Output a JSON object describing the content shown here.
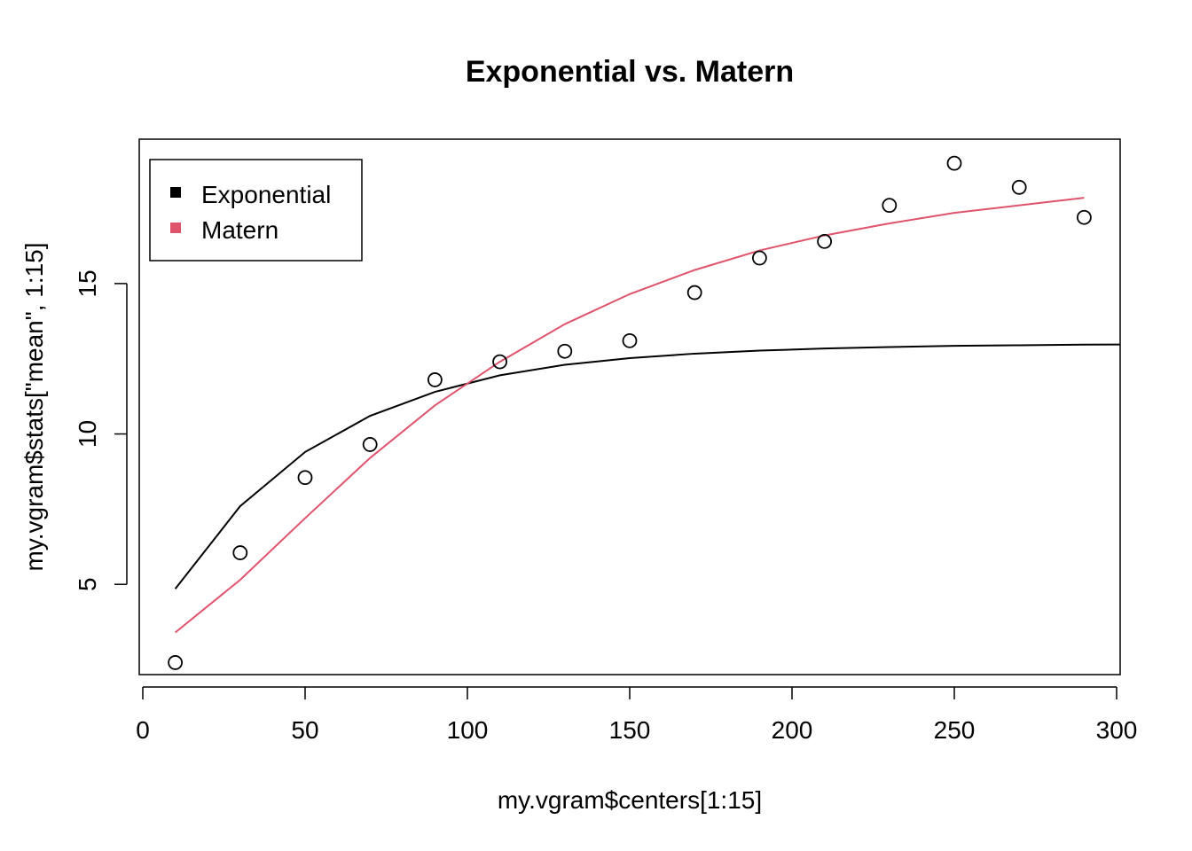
{
  "chart_data": {
    "type": "scatter",
    "title": "Exponential vs. Matern",
    "xlabel": "my.vgram$centers[1:15]",
    "ylabel": "my.vgram$stats[\"mean\", 1:15]",
    "xlim": [
      0,
      300
    ],
    "ylim": [
      2,
      19.8
    ],
    "x_ticks": [
      0,
      50,
      100,
      150,
      200,
      250,
      300
    ],
    "y_ticks": [
      5,
      10,
      15
    ],
    "grid": false,
    "legend_position": "top-left",
    "points": {
      "x": [
        10,
        30,
        50,
        70,
        90,
        110,
        130,
        150,
        170,
        190,
        210,
        230,
        250,
        270,
        290
      ],
      "y": [
        2.4,
        6.05,
        8.55,
        9.65,
        11.8,
        12.4,
        12.75,
        13.1,
        14.7,
        15.85,
        16.4,
        17.6,
        19.0,
        18.2,
        17.2
      ]
    },
    "series": [
      {
        "name": "Exponential",
        "color": "#000000",
        "x": [
          10,
          30,
          50,
          70,
          90,
          110,
          130,
          150,
          170,
          190,
          210,
          230,
          250,
          270,
          290,
          310
        ],
        "y": [
          4.85,
          7.6,
          9.4,
          10.6,
          11.4,
          11.95,
          12.3,
          12.52,
          12.67,
          12.77,
          12.84,
          12.89,
          12.93,
          12.95,
          12.97,
          12.98
        ]
      },
      {
        "name": "Matern",
        "color": "#DF536B",
        "x": [
          10,
          30,
          50,
          70,
          90,
          110,
          130,
          150,
          170,
          190,
          210,
          230,
          250,
          270,
          290
        ],
        "y": [
          3.4,
          5.15,
          7.2,
          9.2,
          10.95,
          12.4,
          13.65,
          14.65,
          15.45,
          16.1,
          16.6,
          17.0,
          17.35,
          17.6,
          17.85
        ]
      }
    ]
  }
}
